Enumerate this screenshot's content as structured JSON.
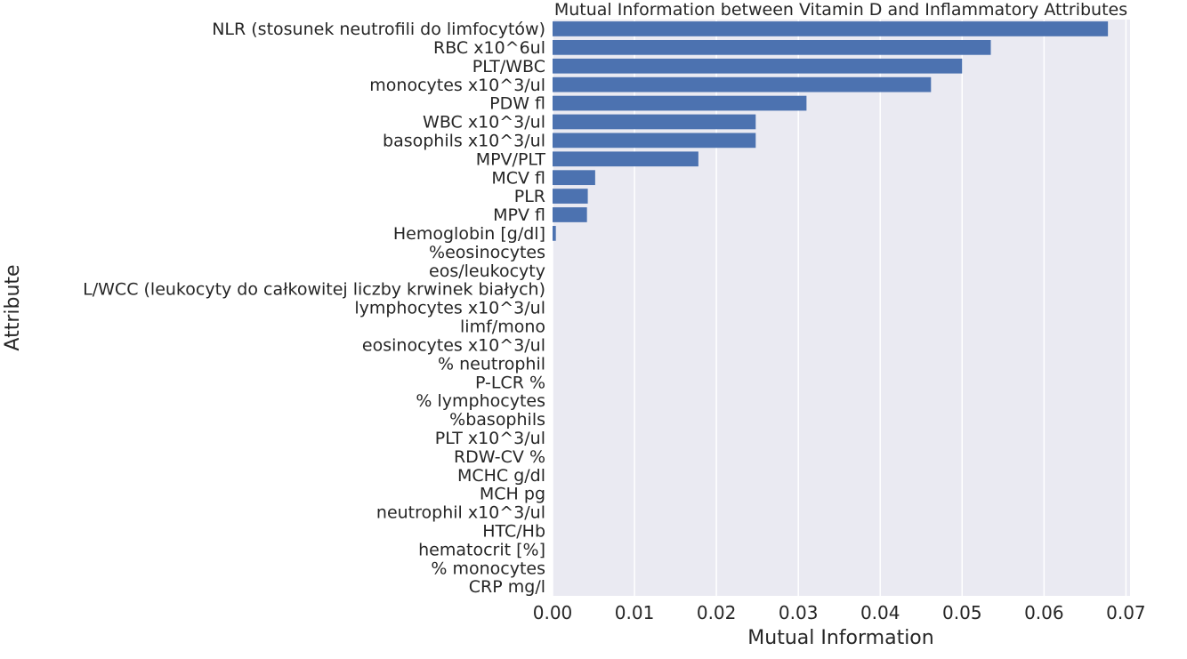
{
  "chart_data": {
    "type": "bar",
    "orientation": "horizontal",
    "title": "Mutual Information between Vitamin D and Inflammatory Attributes",
    "xlabel": "Mutual Information",
    "ylabel": "Attribute",
    "xlim": [
      0,
      0.0705
    ],
    "x_ticks": [
      0.0,
      0.01,
      0.02,
      0.03,
      0.04,
      0.05,
      0.06,
      0.07
    ],
    "x_tick_labels": [
      "0.00",
      "0.01",
      "0.02",
      "0.03",
      "0.04",
      "0.05",
      "0.06",
      "0.07"
    ],
    "grid": true,
    "bar_color": "#4c72b0",
    "background_color": "#eaeaf2",
    "categories": [
      "NLR (stosunek neutrofili do limfocytów)",
      "RBC x10^6ul",
      "PLT/WBC",
      "monocytes x10^3/ul",
      "PDW fl",
      "WBC x10^3/ul",
      "basophils x10^3/ul",
      "MPV/PLT",
      "MCV fl",
      "PLR",
      "MPV fl",
      "Hemoglobin [g/dl]",
      "%eosinocytes ",
      "eos/leukocyty",
      "L/WCC (leukocyty do całkowitej liczby krwinek białych)",
      "lymphocytes x10^3/ul",
      "limf/mono",
      "eosinocytes x10^3/ul",
      "% neutrophil ",
      "P-LCR %",
      "% lymphocytes ",
      "%basophils ",
      "PLT x10^3/ul",
      "RDW-CV %",
      "MCHC g/dl",
      "MCH pg",
      "neutrophil x10^3/ul",
      "HTC/Hb",
      "hematocrit [%]",
      "% monocytes",
      "CRP mg/l"
    ],
    "values": [
      0.0678,
      0.0535,
      0.05,
      0.0462,
      0.031,
      0.0248,
      0.0248,
      0.0178,
      0.0052,
      0.0043,
      0.0042,
      0.0004,
      0,
      0,
      0,
      0,
      0,
      0,
      0,
      0,
      0,
      0,
      0,
      0,
      0,
      0,
      0,
      0,
      0,
      0,
      0
    ]
  }
}
